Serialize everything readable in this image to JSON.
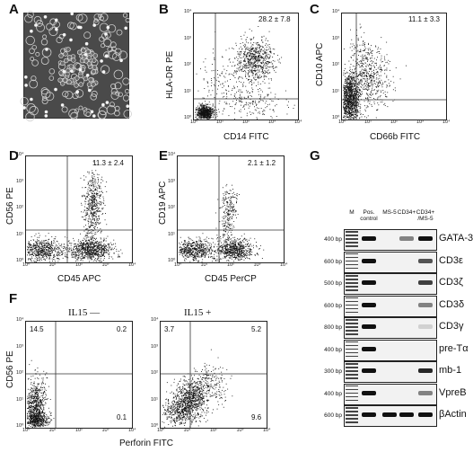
{
  "panels": {
    "A": {
      "letter": "A"
    },
    "B": {
      "letter": "B",
      "xlabel": "CD14 FITC",
      "ylabel": "HLA-DR PE",
      "value": "28.2 ± 7.8"
    },
    "C": {
      "letter": "C",
      "xlabel": "CD66b FITC",
      "ylabel": "CD10 APC",
      "value": "11.1 ± 3.3"
    },
    "D": {
      "letter": "D",
      "xlabel": "CD45 APC",
      "ylabel": "CD56 PE",
      "value": "11.3 ± 2.4"
    },
    "E": {
      "letter": "E",
      "xlabel": "CD45 PerCP",
      "ylabel": "CD19 APC",
      "value": "2.1 ± 1.2"
    },
    "F": {
      "letter": "F",
      "xlabel": "Perforin FITC",
      "ylabel": "CD56 PE",
      "left": {
        "title": "IL15 —",
        "ul": "14.5",
        "ur": "0.2",
        "lr": "0.1"
      },
      "right": {
        "title": "IL15 +",
        "ul": "3.7",
        "ur": "5.2",
        "lr": "9.6"
      }
    },
    "G": {
      "letter": "G",
      "columns": [
        "M",
        "Pos.\ncontrol",
        "MS-5",
        "CD34+",
        "CD34+\n/MS-5"
      ],
      "rows": [
        {
          "bp": "400 bp",
          "gene": "GATA-3"
        },
        {
          "bp": "600 bp",
          "gene": "CD3ε"
        },
        {
          "bp": "500 bp",
          "gene": "CD3ζ"
        },
        {
          "bp": "600 bp",
          "gene": "CD3δ"
        },
        {
          "bp": "800 bp",
          "gene": "CD3γ"
        },
        {
          "bp": "400 bp",
          "gene": "pre-Tα"
        },
        {
          "bp": "300 bp",
          "gene": "mb-1"
        },
        {
          "bp": "400 bp",
          "gene": "VpreB"
        },
        {
          "bp": "600 bp",
          "gene": "βActin"
        }
      ]
    }
  },
  "ticks": {
    "y": [
      "10⁰",
      "10¹",
      "10²",
      "10³",
      "10⁴"
    ],
    "x": [
      "10⁰",
      "10¹",
      "10²",
      "10³",
      "10⁴"
    ]
  }
}
